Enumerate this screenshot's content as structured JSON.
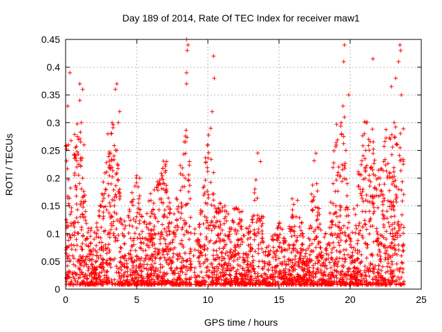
{
  "chart_data": {
    "type": "scatter",
    "title": "Day 189 of 2014, Rate Of TEC Index for receiver maw1",
    "xlabel": "GPS time / hours",
    "ylabel": "ROTI / TECUs",
    "xlim": [
      0,
      25
    ],
    "ylim": [
      0,
      0.45
    ],
    "xticks": [
      0,
      5,
      10,
      15,
      20,
      25
    ],
    "yticks": [
      0,
      0.05,
      0.1,
      0.15,
      0.2,
      0.25,
      0.3,
      0.35,
      0.4,
      0.45
    ],
    "xtick_labels": [
      "0",
      "5",
      "10",
      "15",
      "20",
      "25"
    ],
    "ytick_labels": [
      "0",
      "0.05",
      "0.1",
      "0.15",
      "0.2",
      "0.25",
      "0.3",
      "0.35",
      "0.4",
      "0.45"
    ],
    "grid": true,
    "marker": "+",
    "color": "#ff0000",
    "series": [
      {
        "name": "maw1",
        "x": [
          0.05,
          0.1,
          0.15,
          0.2,
          0.25,
          0.3,
          0.4,
          0.5,
          0.6,
          0.75,
          0.9,
          1.0,
          1.1,
          1.2,
          1.3,
          1.4,
          1.5,
          1.6,
          1.7,
          1.8,
          2.0,
          2.2,
          2.5,
          2.8,
          3.0,
          3.2,
          3.4,
          3.5,
          3.6,
          3.7,
          3.8,
          4.0,
          4.2,
          4.5,
          4.8,
          5.0,
          5.2,
          5.5,
          5.8,
          6.0,
          6.3,
          6.6,
          6.9,
          7.1,
          7.3,
          7.6,
          7.9,
          8.2,
          8.4,
          8.5,
          8.6,
          8.7,
          8.8,
          9.0,
          9.3,
          9.6,
          9.9,
          10.0,
          10.2,
          10.3,
          10.4,
          10.6,
          10.9,
          11.2,
          11.5,
          11.8,
          12.1,
          12.4,
          12.7,
          13.0,
          13.3,
          13.6,
          13.9,
          14.2,
          14.5,
          14.8,
          15.1,
          15.4,
          15.7,
          16.0,
          16.3,
          16.6,
          16.9,
          17.2,
          17.5,
          17.8,
          18.1,
          18.4,
          18.7,
          19.0,
          19.2,
          19.4,
          19.5,
          19.6,
          19.7,
          19.8,
          19.9,
          20.0,
          20.3,
          20.6,
          20.9,
          21.1,
          21.3,
          21.5,
          21.7,
          21.9,
          22.1,
          22.4,
          22.7,
          23.0,
          23.1,
          23.2,
          23.3,
          23.4,
          23.5,
          23.6,
          23.7,
          0.3,
          1.0,
          1.2,
          3.6,
          3.8,
          8.5,
          8.55,
          8.5,
          10.4,
          10.45,
          13.7,
          17.6,
          19.55,
          19.6,
          19.9,
          21.0,
          21.6,
          22.9,
          23.4,
          23.5,
          23.55,
          23.6
        ],
        "y": [
          0.02,
          0.12,
          0.33,
          0.26,
          0.15,
          0.05,
          0.08,
          0.06,
          0.12,
          0.18,
          0.27,
          0.34,
          0.3,
          0.2,
          0.26,
          0.14,
          0.09,
          0.04,
          0.07,
          0.11,
          0.09,
          0.06,
          0.15,
          0.08,
          0.19,
          0.28,
          0.24,
          0.36,
          0.25,
          0.3,
          0.18,
          0.1,
          0.06,
          0.14,
          0.08,
          0.11,
          0.2,
          0.12,
          0.09,
          0.16,
          0.13,
          0.07,
          0.18,
          0.23,
          0.12,
          0.1,
          0.06,
          0.08,
          0.2,
          0.37,
          0.44,
          0.23,
          0.05,
          0.06,
          0.09,
          0.14,
          0.11,
          0.26,
          0.29,
          0.32,
          0.21,
          0.14,
          0.1,
          0.15,
          0.09,
          0.12,
          0.08,
          0.14,
          0.11,
          0.07,
          0.1,
          0.05,
          0.13,
          0.06,
          0.09,
          0.04,
          0.11,
          0.05,
          0.08,
          0.13,
          0.16,
          0.12,
          0.07,
          0.05,
          0.09,
          0.11,
          0.06,
          0.08,
          0.1,
          0.15,
          0.22,
          0.28,
          0.33,
          0.31,
          0.25,
          0.19,
          0.12,
          0.08,
          0.05,
          0.1,
          0.18,
          0.25,
          0.27,
          0.22,
          0.14,
          0.09,
          0.2,
          0.16,
          0.12,
          0.1,
          0.3,
          0.38,
          0.26,
          0.18,
          0.11,
          0.06,
          0.03,
          0.39,
          0.37,
          0.36,
          0.37,
          0.32,
          0.45,
          0.43,
          0.39,
          0.42,
          0.38,
          0.23,
          0.245,
          0.41,
          0.44,
          0.35,
          0.28,
          0.415,
          0.365,
          0.41,
          0.44,
          0.43,
          0.35
        ],
        "note": "Approximate representative points; chart is a dense scatter of several thousand '+' markers concentrated between 0 and ~0.15 with excursions up to ~0.45."
      }
    ]
  }
}
